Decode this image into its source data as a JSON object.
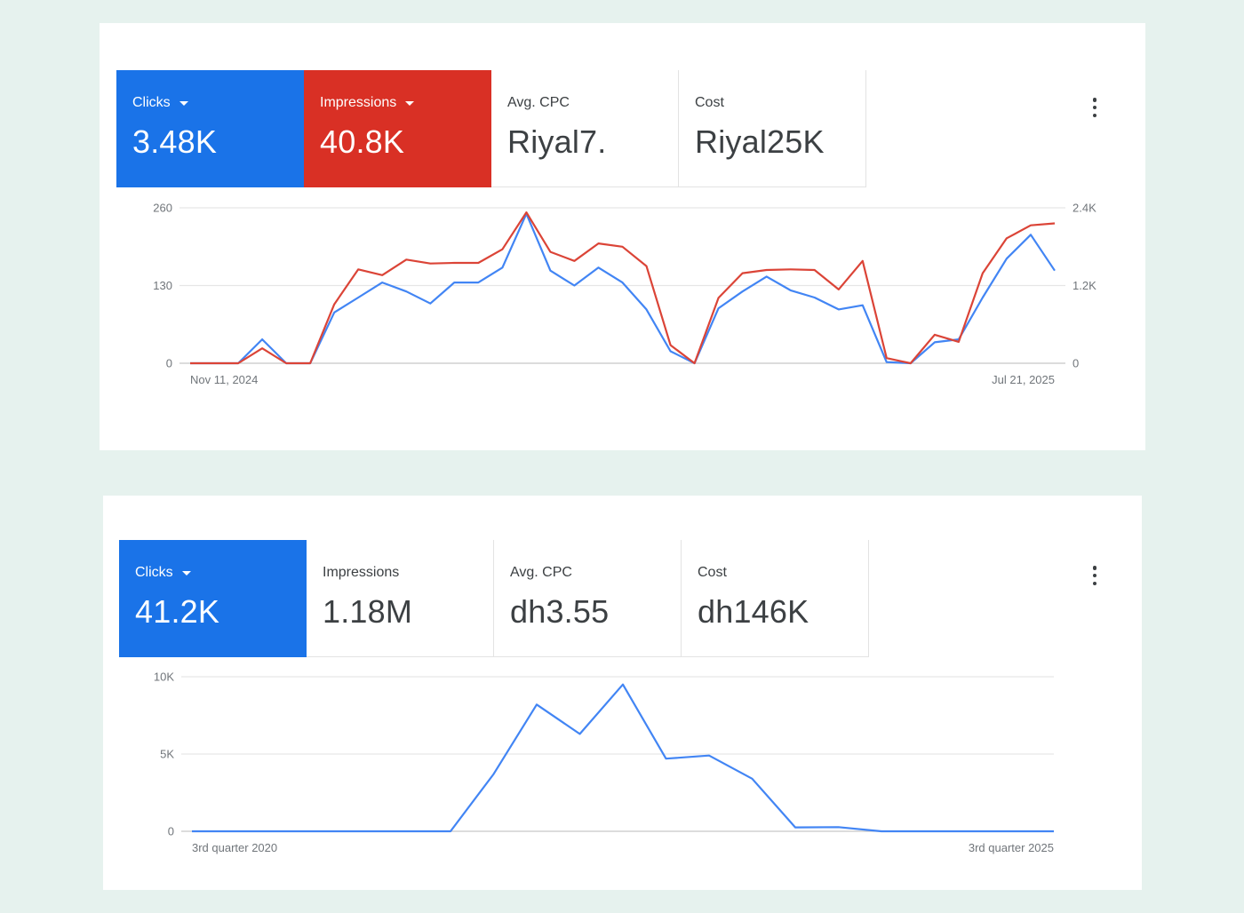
{
  "card1": {
    "tiles": [
      {
        "label": "Clicks",
        "value": "3.48K",
        "selected": true,
        "color": "#1a73e8"
      },
      {
        "label": "Impressions",
        "value": "40.8K",
        "selected": true,
        "color": "#d93025"
      },
      {
        "label": "Avg. CPC",
        "value": "Riyal7.",
        "selected": false
      },
      {
        "label": "Cost",
        "value": "Riyal25K",
        "selected": false
      }
    ]
  },
  "card2": {
    "tiles": [
      {
        "label": "Clicks",
        "value": "41.2K",
        "selected": true,
        "color": "#1a73e8"
      },
      {
        "label": "Impressions",
        "value": "1.18M",
        "selected": false
      },
      {
        "label": "Avg. CPC",
        "value": "dh3.55",
        "selected": false
      },
      {
        "label": "Cost",
        "value": "dh146K",
        "selected": false
      }
    ]
  },
  "chart_data": [
    {
      "type": "line",
      "x_start_label": "Nov 11, 2024",
      "x_end_label": "Jul 21, 2025",
      "y_left": {
        "ticks": [
          "0",
          "130",
          "260"
        ],
        "range": [
          0,
          260
        ]
      },
      "y_right": {
        "ticks": [
          "0",
          "1.2K",
          "2.4K"
        ],
        "range": [
          0,
          2400
        ]
      },
      "grid": true,
      "series": [
        {
          "name": "Clicks",
          "axis": "left",
          "color": "#4285f4",
          "values": [
            0,
            0,
            0,
            40,
            0,
            0,
            85,
            110,
            135,
            120,
            100,
            135,
            135,
            160,
            250,
            155,
            130,
            160,
            135,
            90,
            20,
            0,
            92,
            120,
            145,
            122,
            110,
            90,
            97,
            2,
            0,
            35,
            40,
            110,
            175,
            215,
            155
          ]
        },
        {
          "name": "Impressions",
          "axis": "right",
          "color": "#db4437",
          "values": [
            0,
            0,
            0,
            230,
            0,
            0,
            910,
            1450,
            1360,
            1600,
            1540,
            1550,
            1550,
            1760,
            2330,
            1720,
            1580,
            1850,
            1800,
            1500,
            280,
            0,
            1010,
            1390,
            1440,
            1450,
            1440,
            1140,
            1580,
            80,
            0,
            440,
            330,
            1390,
            1930,
            2130,
            2160
          ]
        }
      ]
    },
    {
      "type": "line",
      "x_start_label": "3rd quarter 2020",
      "x_end_label": "3rd quarter 2025",
      "y_left": {
        "ticks": [
          "0",
          "5K",
          "10K"
        ],
        "range": [
          0,
          10000
        ]
      },
      "grid": true,
      "series": [
        {
          "name": "Clicks",
          "axis": "left",
          "color": "#4285f4",
          "values": [
            0,
            0,
            0,
            0,
            0,
            0,
            0,
            3700,
            8200,
            6300,
            9500,
            4700,
            4900,
            3400,
            250,
            270,
            0,
            0,
            0,
            0,
            0
          ]
        }
      ]
    }
  ]
}
